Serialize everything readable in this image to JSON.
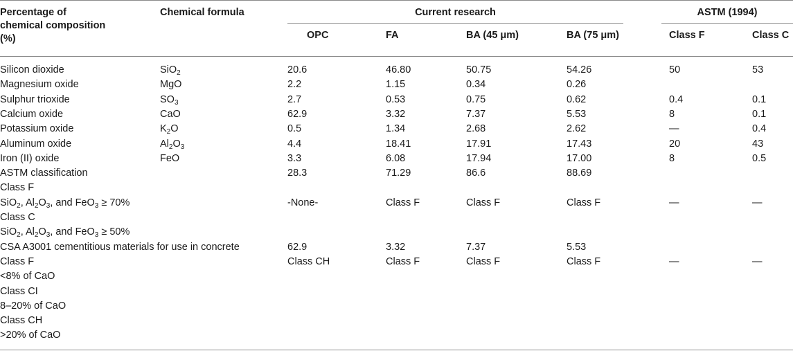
{
  "header": {
    "col1": [
      "Percentage of",
      "chemical composition",
      "(%)"
    ],
    "col2": "Chemical formula",
    "group_current": "Current research",
    "group_astm": "ASTM (1994)",
    "sub": [
      "OPC",
      "FA",
      "BA (45 μm)",
      "BA (75 μm)",
      "Class F",
      "Class C"
    ]
  },
  "rows": [
    {
      "name": "Silicon dioxide",
      "formula": "SiO2",
      "values": [
        "20.6",
        "46.80",
        "50.75",
        "54.26",
        "50",
        "53"
      ]
    },
    {
      "name": "Magnesium oxide",
      "formula": "MgO",
      "values": [
        "2.2",
        "1.15",
        "0.34",
        "0.26",
        "",
        ""
      ]
    },
    {
      "name": "Sulphur trioxide",
      "formula": "SO3",
      "values": [
        "2.7",
        "0.53",
        "0.75",
        "0.62",
        "0.4",
        "0.1"
      ]
    },
    {
      "name": "Calcium oxide",
      "formula": "CaO",
      "values": [
        "62.9",
        "3.32",
        "7.37",
        "5.53",
        "8",
        "0.1"
      ]
    },
    {
      "name": "Potassium oxide",
      "formula": "K2O",
      "values": [
        "0.5",
        "1.34",
        "2.68",
        "2.62",
        "—",
        "0.4"
      ]
    },
    {
      "name": "Aluminum oxide",
      "formula": "Al2O3",
      "values": [
        "4.4",
        "18.41",
        "17.91",
        "17.43",
        "20",
        "43"
      ]
    },
    {
      "name": "Iron (II) oxide",
      "formula": "FeO",
      "values": [
        "3.3",
        "6.08",
        "17.94",
        "17.00",
        "8",
        "0.5"
      ]
    }
  ],
  "astm": {
    "label": "ASTM classification",
    "values": [
      "28.3",
      "71.29",
      "86.6",
      "88.69"
    ],
    "lines": [
      "Class F",
      "SiO2, Al2O3, and FeO3 ≥ 70%",
      "Class C",
      "SiO2, Al2O3, and FeO3 ≥ 50%"
    ],
    "class_values": [
      "-None-",
      "Class F",
      "Class F",
      "Class F",
      "—",
      "—"
    ]
  },
  "csa": {
    "label": "CSA A3001 cementitious materials for use in concrete",
    "values": [
      "62.9",
      "3.32",
      "7.37",
      "5.53"
    ],
    "lines": [
      "Class F",
      "<8% of CaO",
      "Class CI",
      "8–20% of CaO",
      "Class CH",
      ">20% of CaO"
    ],
    "class_values": [
      "Class CH",
      "Class F",
      "Class F",
      "Class F",
      "—",
      "—"
    ]
  }
}
